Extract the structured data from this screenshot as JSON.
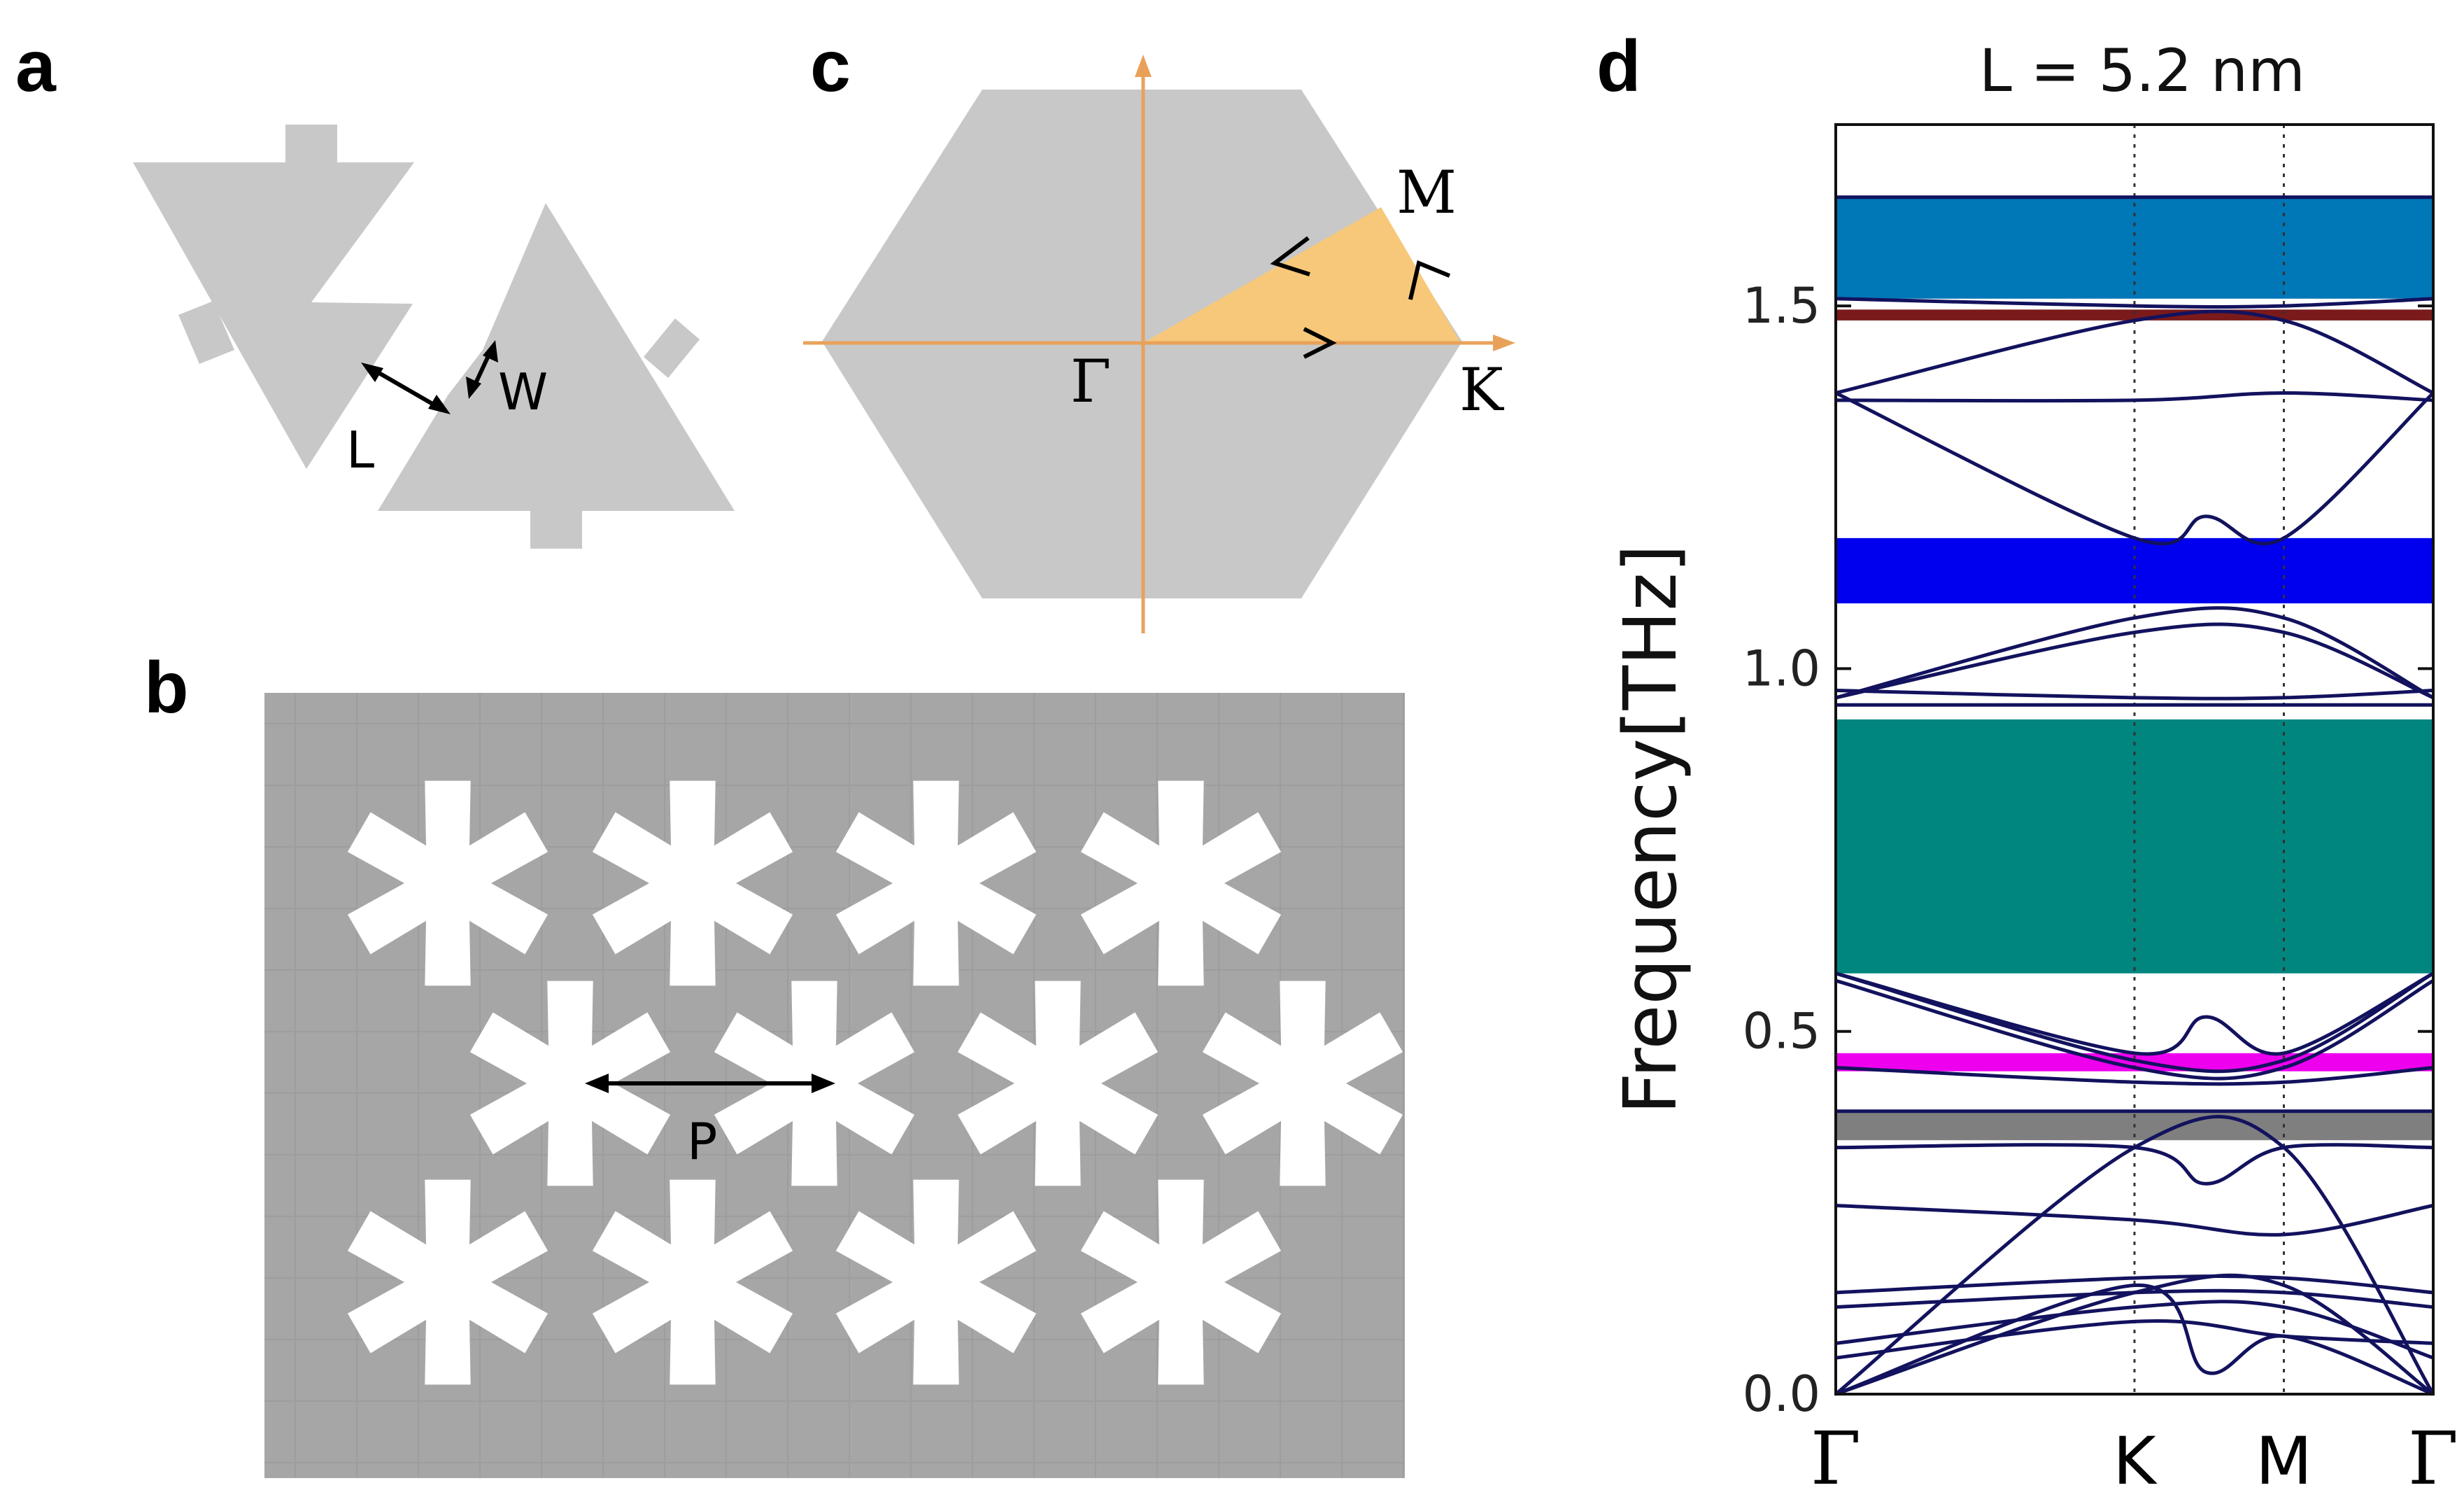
{
  "panels": {
    "a": {
      "letter": "a",
      "label_L": "L",
      "label_W": "W"
    },
    "b": {
      "letter": "b",
      "label_P": "P"
    },
    "c": {
      "letter": "c",
      "label_gamma": "Γ",
      "label_M": "M",
      "label_K": "K"
    },
    "d": {
      "letter": "d"
    }
  },
  "colors": {
    "shape_gray": "#c8c8c8",
    "tile_gray": "#a6a6a6",
    "axis_orange": "#e9a15a",
    "wedge_orange": "#f7c879",
    "band_line": "#12125e",
    "gap_sky": "#0077b6",
    "gap_maroon": "#7a1a1a",
    "gap_blue": "#0000ee",
    "gap_teal": "#00857f",
    "gap_magenta": "#ee00ee",
    "gap_gray": "#7f7f7f"
  },
  "chart_data": {
    "type": "line",
    "title": "L = 5.2 nm",
    "xlabel": "",
    "ylabel": "Frequency[THz]",
    "ylim": [
      0.0,
      1.75
    ],
    "yticks": [
      "0.0",
      "0.5",
      "1.0",
      "1.5"
    ],
    "ytick_values": [
      0.0,
      0.5,
      1.0,
      1.5
    ],
    "x_ticks": [
      "Γ",
      "K",
      "M",
      "Γ"
    ],
    "x_tick_positions": [
      0.0,
      0.5,
      0.75,
      1.0
    ],
    "band_gaps": [
      {
        "name": "gap-6",
        "lower": 1.51,
        "upper": 1.65,
        "color": "#0077b6"
      },
      {
        "name": "gap-5",
        "lower": 1.48,
        "upper": 1.495,
        "color": "#7a1a1a"
      },
      {
        "name": "gap-4",
        "lower": 1.09,
        "upper": 1.18,
        "color": "#0000ee"
      },
      {
        "name": "gap-3",
        "lower": 0.58,
        "upper": 0.93,
        "color": "#00857f"
      },
      {
        "name": "gap-2",
        "lower": 0.445,
        "upper": 0.47,
        "color": "#ee00ee"
      },
      {
        "name": "gap-1",
        "lower": 0.35,
        "upper": 0.39,
        "color": "#7f7f7f"
      }
    ],
    "series": [
      {
        "name": "band-1",
        "x": [
          0,
          0.5,
          0.75,
          1
        ],
        "values": [
          0.0,
          0.34,
          0.34,
          0.0
        ]
      },
      {
        "name": "band-2",
        "x": [
          0,
          0.5,
          0.62,
          0.75,
          1
        ],
        "values": [
          0.0,
          0.15,
          0.03,
          0.08,
          0.0
        ]
      },
      {
        "name": "band-3",
        "x": [
          0,
          0.5,
          0.75,
          1
        ],
        "values": [
          0.0,
          0.14,
          0.15,
          0.0
        ]
      },
      {
        "name": "band-4",
        "x": [
          0,
          0.5,
          0.75,
          1
        ],
        "values": [
          0.05,
          0.1,
          0.08,
          0.07
        ]
      },
      {
        "name": "band-5",
        "x": [
          0,
          0.5,
          0.75,
          1
        ],
        "values": [
          0.07,
          0.12,
          0.12,
          0.05
        ]
      },
      {
        "name": "band-6",
        "x": [
          0,
          0.5,
          0.75,
          1
        ],
        "values": [
          0.12,
          0.14,
          0.14,
          0.12
        ]
      },
      {
        "name": "band-7",
        "x": [
          0,
          0.5,
          0.75,
          1
        ],
        "values": [
          0.14,
          0.16,
          0.16,
          0.14
        ]
      },
      {
        "name": "band-8",
        "x": [
          0,
          0.5,
          0.75,
          1
        ],
        "values": [
          0.26,
          0.24,
          0.22,
          0.26
        ]
      },
      {
        "name": "band-9",
        "x": [
          0,
          0.5,
          0.62,
          0.75,
          1
        ],
        "values": [
          0.34,
          0.34,
          0.29,
          0.34,
          0.34
        ]
      },
      {
        "name": "band-10",
        "x": [
          0,
          0.5,
          0.75,
          1
        ],
        "values": [
          0.39,
          0.39,
          0.39,
          0.39
        ]
      },
      {
        "name": "band-11",
        "x": [
          0,
          0.5,
          0.75,
          1
        ],
        "values": [
          0.58,
          0.46,
          0.46,
          0.58
        ]
      },
      {
        "name": "band-12",
        "x": [
          0,
          0.5,
          0.62,
          0.75,
          1
        ],
        "values": [
          0.58,
          0.47,
          0.52,
          0.47,
          0.58
        ]
      },
      {
        "name": "band-13",
        "x": [
          0,
          0.5,
          0.75,
          1
        ],
        "values": [
          0.57,
          0.45,
          0.45,
          0.57
        ]
      },
      {
        "name": "band-14",
        "x": [
          0,
          0.5,
          0.75,
          1
        ],
        "values": [
          0.45,
          0.43,
          0.43,
          0.45
        ]
      },
      {
        "name": "band-15",
        "x": [
          0,
          0.5,
          0.75,
          1
        ],
        "values": [
          0.96,
          1.07,
          1.07,
          0.96
        ]
      },
      {
        "name": "band-16",
        "x": [
          0,
          0.5,
          0.75,
          1
        ],
        "values": [
          0.96,
          1.05,
          1.05,
          0.96
        ]
      },
      {
        "name": "band-17",
        "x": [
          0,
          0.5,
          0.75,
          1
        ],
        "values": [
          0.97,
          0.96,
          0.96,
          0.97
        ]
      },
      {
        "name": "band-18",
        "x": [
          0,
          0.5,
          0.75,
          1
        ],
        "values": [
          0.95,
          0.95,
          0.95,
          0.95
        ]
      },
      {
        "name": "band-19",
        "x": [
          0,
          0.5,
          0.62,
          0.75,
          1
        ],
        "values": [
          1.38,
          1.18,
          1.21,
          1.18,
          1.38
        ]
      },
      {
        "name": "band-20",
        "x": [
          0,
          0.5,
          0.75,
          1
        ],
        "values": [
          1.38,
          1.48,
          1.48,
          1.38
        ]
      },
      {
        "name": "band-21",
        "x": [
          0,
          0.5,
          0.75,
          1
        ],
        "values": [
          1.37,
          1.37,
          1.38,
          1.37
        ]
      },
      {
        "name": "band-22",
        "x": [
          0,
          0.5,
          0.75,
          1
        ],
        "values": [
          1.51,
          1.5,
          1.5,
          1.51
        ]
      },
      {
        "name": "band-23",
        "x": [
          0,
          0.5,
          0.75,
          1
        ],
        "values": [
          1.65,
          1.65,
          1.65,
          1.65
        ]
      }
    ]
  }
}
